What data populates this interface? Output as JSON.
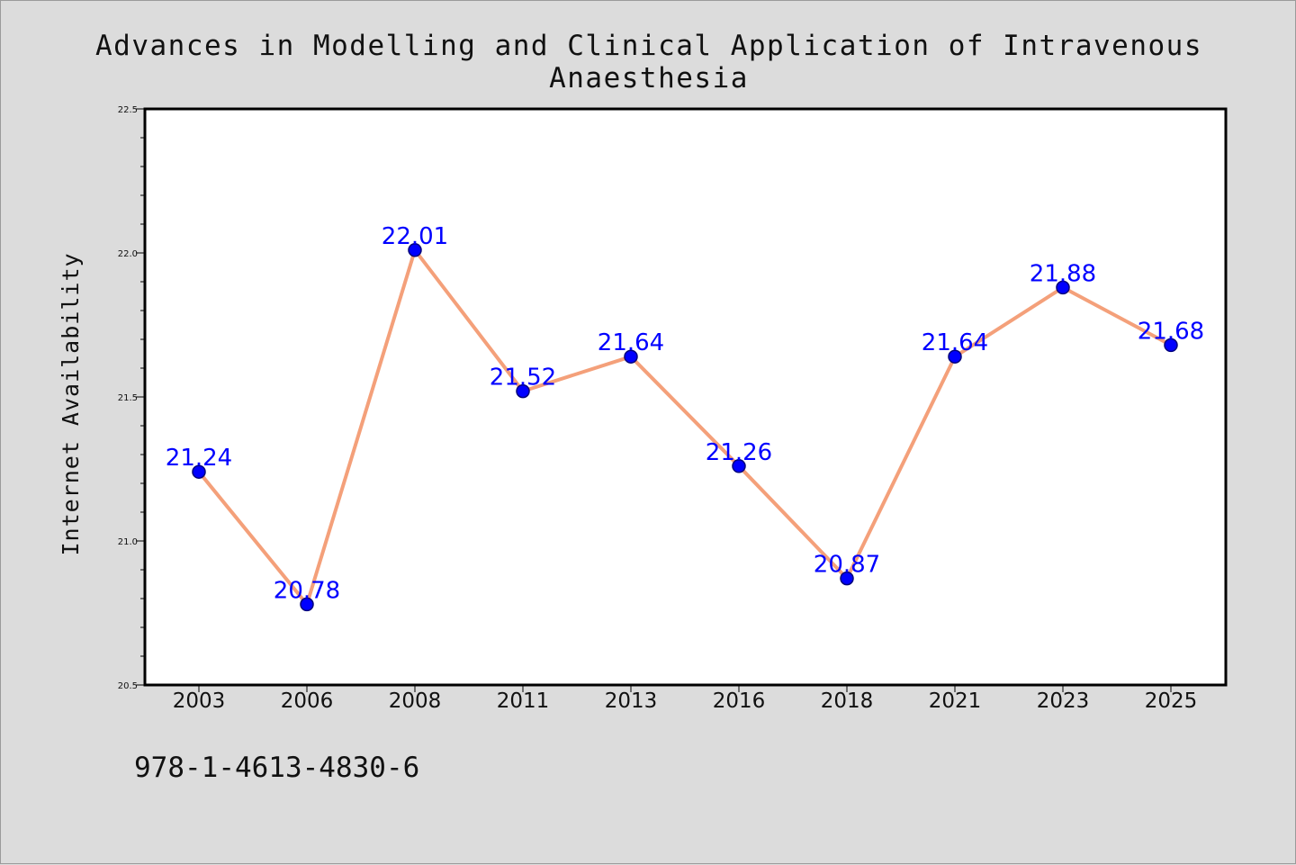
{
  "title": "Advances in Modelling and Clinical Application of Intravenous Anaesthesia",
  "footer_text": "978-1-4613-4830-6",
  "chart_data": {
    "type": "line",
    "title": "Advances in Modelling and Clinical Application of Intravenous Anaesthesia",
    "xlabel": "",
    "ylabel": "Internet Availability",
    "categories": [
      "2003",
      "2006",
      "2008",
      "2011",
      "2013",
      "2016",
      "2018",
      "2021",
      "2023",
      "2025"
    ],
    "series": [
      {
        "values": [
          21.24,
          20.78,
          22.01,
          21.52,
          21.64,
          21.26,
          20.87,
          21.64,
          21.88,
          21.68
        ]
      }
    ],
    "data_labels": [
      "21.24",
      "20.78",
      "22.01",
      "21.52",
      "21.64",
      "21.26",
      "20.87",
      "21.64",
      "21.88",
      "21.68"
    ],
    "ylim": [
      20.5,
      22.5
    ],
    "yticks": [
      "20.5",
      "21.0",
      "21.5",
      "22.0",
      "22.5"
    ],
    "grid": false,
    "colors": {
      "line": "#f4a07a",
      "marker": "#0000ff",
      "marker_edge": "#00007a",
      "label": "#0000ff",
      "background": "#dcdcdc",
      "plot_area": "#ffffff"
    }
  }
}
